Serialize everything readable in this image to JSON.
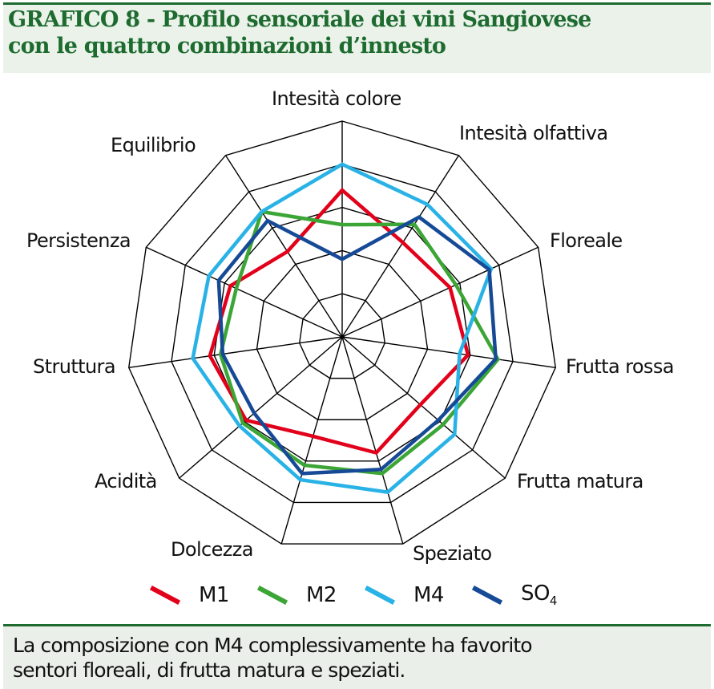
{
  "header": {
    "title_line1": "GRAFICO 8 - Profilo sensoriale dei vini Sangiovese",
    "title_line2": "con le quattro combinazioni d’innesto"
  },
  "footer": {
    "caption_line1": "La composizione con M4 complessivamente ha favorito",
    "caption_line2": "sentori floreali, di frutta matura e speziati."
  },
  "colors": {
    "header_green": "#1e6b30",
    "header_bg": "#eaf2ea",
    "grid": "#000000"
  },
  "legend": [
    {
      "name": "M1",
      "label": "M1",
      "sub": "",
      "color": "#e2001a"
    },
    {
      "name": "M2",
      "label": "M2",
      "sub": "",
      "color": "#3ba535"
    },
    {
      "name": "M4",
      "label": "M4",
      "sub": "",
      "color": "#29b2e6"
    },
    {
      "name": "SO4",
      "label": "SO",
      "sub": "4",
      "color": "#164a96"
    }
  ],
  "chart_data": {
    "type": "radar",
    "title": "GRAFICO 8 - Profilo sensoriale dei vini Sangiovese con le quattro combinazioni d’innesto",
    "categories": [
      "Intesità colore",
      "Intesità olfattiva",
      "Floreale",
      "Frutta rossa",
      "Frutta matura",
      "Speziato",
      "Dolcezza",
      "Acidità",
      "Struttura",
      "Persistenza",
      "Equilibrio"
    ],
    "rlim": [
      0,
      5
    ],
    "rings": 5,
    "grid": true,
    "legend_position": "bottom",
    "series": [
      {
        "name": "M1",
        "color": "#e2001a",
        "values": [
          3.4,
          2.6,
          2.75,
          2.95,
          2.4,
          2.8,
          2.4,
          2.95,
          3.1,
          2.85,
          2.35
        ]
      },
      {
        "name": "M2",
        "color": "#3ba535",
        "values": [
          2.6,
          3.1,
          2.9,
          3.65,
          3.1,
          3.3,
          3.1,
          3.05,
          2.85,
          2.7,
          3.45
        ]
      },
      {
        "name": "M4",
        "color": "#29b2e6",
        "values": [
          4.0,
          3.65,
          3.8,
          2.75,
          3.45,
          3.75,
          3.45,
          3.15,
          3.5,
          3.4,
          3.45
        ]
      },
      {
        "name": "SO4",
        "color": "#164a96",
        "values": [
          1.8,
          3.3,
          3.75,
          3.6,
          2.95,
          3.2,
          3.3,
          2.7,
          2.8,
          3.15,
          3.2
        ]
      }
    ]
  },
  "axis_label_positions": [
    {
      "left": 339,
      "top": 14
    },
    {
      "left": 573,
      "top": 57
    },
    {
      "left": 686,
      "top": 191
    },
    {
      "left": 706,
      "top": 348
    },
    {
      "left": 645,
      "top": 491
    },
    {
      "left": 515,
      "top": 581
    },
    {
      "left": 213,
      "top": 576
    },
    {
      "left": 118,
      "top": 491
    },
    {
      "left": 41,
      "top": 348
    },
    {
      "left": 33,
      "top": 191
    },
    {
      "left": 138,
      "top": 72
    }
  ]
}
